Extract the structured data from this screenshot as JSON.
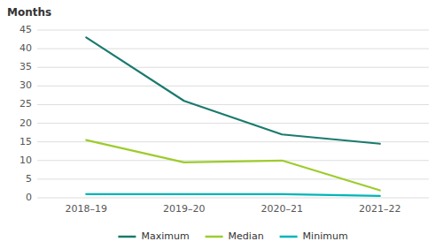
{
  "chart_data": {
    "type": "line",
    "ylabel": "Months",
    "categories": [
      "2018–19",
      "2019–20",
      "2020–21",
      "2021–22"
    ],
    "series": [
      {
        "name": "Maximum",
        "color": "#1a7a6e",
        "values": [
          43,
          26,
          17,
          14.5
        ]
      },
      {
        "name": "Median",
        "color": "#9dcc2c",
        "values": [
          15.5,
          9.5,
          10,
          2
        ]
      },
      {
        "name": "Minimum",
        "color": "#00b5b8",
        "values": [
          1,
          1,
          1,
          0.5
        ]
      }
    ],
    "ylim": [
      0,
      45
    ],
    "yticks": [
      0,
      5,
      10,
      15,
      20,
      25,
      30,
      35,
      40,
      45
    ],
    "grid": true,
    "legend": "bottom"
  }
}
